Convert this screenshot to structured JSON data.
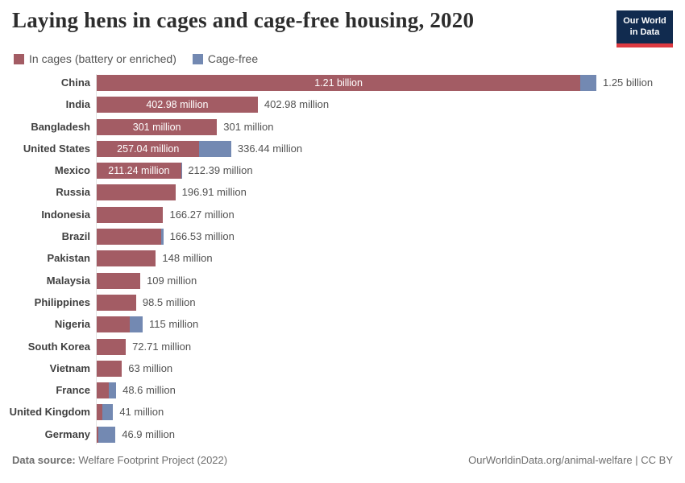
{
  "header": {
    "title": "Laying hens in cages and cage-free housing, 2020",
    "logo": {
      "line1": "Our World",
      "line2": "in Data"
    }
  },
  "legend": {
    "items": [
      {
        "label": "In cages (battery or enriched)",
        "color": "#a35c64"
      },
      {
        "label": "Cage-free",
        "color": "#7389b2"
      }
    ]
  },
  "chart_data": {
    "type": "bar",
    "orientation": "horizontal",
    "stacked": true,
    "title": "Laying hens in cages and cage-free housing, 2020",
    "unit": "hens (millions)",
    "xlim_million": [
      0,
      1250
    ],
    "legend_position": "top-left",
    "grid": false,
    "series_meta": [
      {
        "name": "In cages (battery or enriched)",
        "color": "#a35c64"
      },
      {
        "name": "Cage-free",
        "color": "#7389b2"
      }
    ],
    "rows": [
      {
        "country": "China",
        "in_cages_million": 1210,
        "cage_free_million": 40,
        "segment_label": "1.21 billion",
        "total_label": "1.25 billion"
      },
      {
        "country": "India",
        "in_cages_million": 402.98,
        "cage_free_million": 0,
        "segment_label": "402.98 million",
        "total_label": "402.98 million"
      },
      {
        "country": "Bangladesh",
        "in_cages_million": 301,
        "cage_free_million": 0,
        "segment_label": "301 million",
        "total_label": "301 million"
      },
      {
        "country": "United States",
        "in_cages_million": 257.04,
        "cage_free_million": 79.4,
        "segment_label": "257.04 million",
        "total_label": "336.44 million"
      },
      {
        "country": "Mexico",
        "in_cages_million": 211.24,
        "cage_free_million": 1.15,
        "segment_label": "211.24 million",
        "total_label": "212.39 million"
      },
      {
        "country": "Russia",
        "in_cages_million": 196.91,
        "cage_free_million": 0,
        "segment_label": null,
        "total_label": "196.91 million"
      },
      {
        "country": "Indonesia",
        "in_cages_million": 166.27,
        "cage_free_million": 0,
        "segment_label": null,
        "total_label": "166.27 million"
      },
      {
        "country": "Brazil",
        "in_cages_million": 160.5,
        "cage_free_million": 6.03,
        "segment_label": null,
        "total_label": "166.53 million"
      },
      {
        "country": "Pakistan",
        "in_cages_million": 148,
        "cage_free_million": 0,
        "segment_label": null,
        "total_label": "148 million"
      },
      {
        "country": "Malaysia",
        "in_cages_million": 109,
        "cage_free_million": 0,
        "segment_label": null,
        "total_label": "109 million"
      },
      {
        "country": "Philippines",
        "in_cages_million": 98.5,
        "cage_free_million": 0,
        "segment_label": null,
        "total_label": "98.5 million"
      },
      {
        "country": "Nigeria",
        "in_cages_million": 83,
        "cage_free_million": 32,
        "segment_label": null,
        "total_label": "115 million"
      },
      {
        "country": "South Korea",
        "in_cages_million": 72.71,
        "cage_free_million": 0,
        "segment_label": null,
        "total_label": "72.71 million"
      },
      {
        "country": "Vietnam",
        "in_cages_million": 63,
        "cage_free_million": 0,
        "segment_label": null,
        "total_label": "63 million"
      },
      {
        "country": "France",
        "in_cages_million": 30,
        "cage_free_million": 18.6,
        "segment_label": null,
        "total_label": "48.6 million"
      },
      {
        "country": "United Kingdom",
        "in_cages_million": 14,
        "cage_free_million": 27,
        "segment_label": null,
        "total_label": "41 million"
      },
      {
        "country": "Germany",
        "in_cages_million": 4,
        "cage_free_million": 42.9,
        "segment_label": null,
        "total_label": "46.9 million"
      }
    ]
  },
  "footer": {
    "source_label": "Data source:",
    "source_text": " Welfare Footprint Project (2022)",
    "link_text": "OurWorldinData.org/animal-welfare | CC BY"
  }
}
